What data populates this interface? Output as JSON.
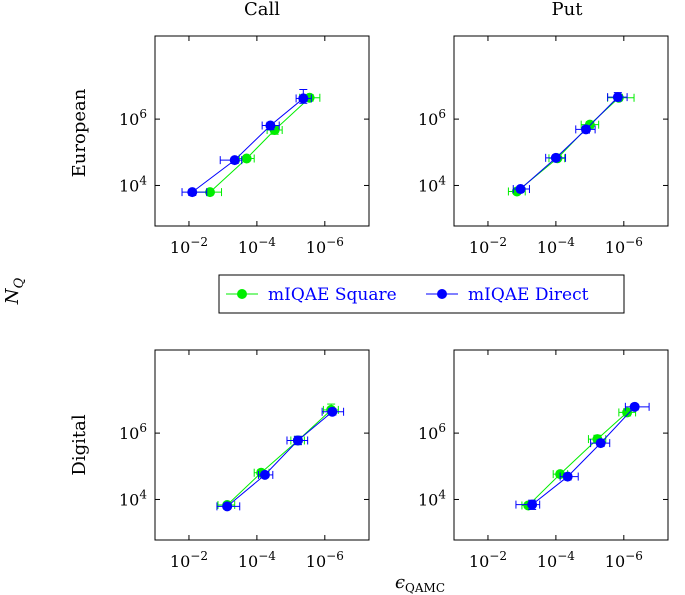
{
  "figure": {
    "col_titles": [
      "Call",
      "Put"
    ],
    "row_titles": [
      "European",
      "Digital"
    ],
    "xlabel": "ϵQAMC",
    "xlabel_main": "ϵ",
    "xlabel_sub": "QAMC",
    "ylabel": "NQ",
    "ylabel_main": "N",
    "ylabel_sub": "Q",
    "legend": {
      "placement": "center",
      "entries": [
        {
          "label": "mIQAE Square",
          "color": "#00ee00"
        },
        {
          "label": "mIQAE Direct",
          "color": "#0000ff"
        }
      ],
      "text_color": "#0000ff"
    }
  },
  "chart_data": [
    {
      "type": "scatter",
      "panel": "European-Call",
      "xscale": "log",
      "yscale": "log",
      "xreversed": true,
      "xlim": [
        0.1,
        5e-08
      ],
      "ylim": [
        600,
        320000000.0
      ],
      "xticks": [
        "10^-2",
        "10^-4",
        "10^-6"
      ],
      "yticks": [
        "10^4",
        "10^6"
      ],
      "series": [
        {
          "name": "mIQAE Square",
          "color": "#00ee00",
          "points": [
            {
              "x": 0.0024,
              "y": 6300.0,
              "xerr": [
                0.007,
                0.0011
              ]
            },
            {
              "x": 0.0002,
              "y": 65000.0,
              "xerr": [
                0.00033,
                0.00012
              ]
            },
            {
              "x": 3e-05,
              "y": 470000.0,
              "xerr": [
                5e-05,
                1.8e-05
              ],
              "yerr": [
                350000.0,
                600000.0
              ]
            },
            {
              "x": 2.8e-06,
              "y": 4400000.0,
              "xerr": [
                5.5e-06,
                1.4e-06
              ],
              "yerr": [
                3500000.0,
                5500000.0
              ]
            }
          ]
        },
        {
          "name": "mIQAE Direct",
          "color": "#0000ff",
          "points": [
            {
              "x": 0.008,
              "y": 6300.0,
              "xerr": [
                0.016,
                0.003
              ],
              "yerr": [
                5000.0,
                7500.0
              ]
            },
            {
              "x": 0.00045,
              "y": 58000.0,
              "xerr": [
                0.0012,
                0.00028
              ],
              "yerr": [
                46000.0,
                68000.0
              ]
            },
            {
              "x": 4e-05,
              "y": 640000.0,
              "xerr": [
                7e-05,
                2.2e-05
              ],
              "yerr": [
                480000.0,
                800000.0
              ]
            },
            {
              "x": 4.3e-06,
              "y": 4200000.0,
              "xerr": [
                7e-06,
                2.5e-06
              ],
              "yerr": [
                3000000.0,
                7800000.0
              ]
            }
          ]
        }
      ]
    },
    {
      "type": "scatter",
      "panel": "European-Put",
      "xscale": "log",
      "yscale": "log",
      "xreversed": true,
      "xlim": [
        0.1,
        5e-08
      ],
      "ylim": [
        600,
        320000000.0
      ],
      "xticks": [
        "10^-2",
        "10^-4",
        "10^-6"
      ],
      "yticks": [
        "10^4",
        "10^6"
      ],
      "series": [
        {
          "name": "mIQAE Square",
          "color": "#00ee00",
          "points": [
            {
              "x": 0.0014,
              "y": 6600.0,
              "xerr": [
                0.0025,
                0.0008
              ]
            },
            {
              "x": 9e-05,
              "y": 66000.0,
              "xerr": [
                0.00016,
                5.5e-05
              ]
            },
            {
              "x": 1e-05,
              "y": 680000.0,
              "xerr": [
                1.8e-05,
                5.5e-06
              ],
              "yerr": [
                530000.0,
                830000.0
              ]
            },
            {
              "x": 1.4e-06,
              "y": 4400000.0,
              "xerr": [
                3e-06,
                5e-07
              ],
              "yerr": [
                3600000.0,
                5600000.0
              ]
            }
          ]
        },
        {
          "name": "mIQAE Direct",
          "color": "#0000ff",
          "points": [
            {
              "x": 0.0011,
              "y": 7800.0,
              "xerr": [
                0.0018,
                0.0006
              ],
              "yerr": [
                6800.0,
                9000.0
              ]
            },
            {
              "x": 0.0001,
              "y": 68000.0,
              "xerr": [
                0.0002,
                5.2e-05
              ],
              "yerr": [
                55000.0,
                81000.0
              ]
            },
            {
              "x": 1.3e-05,
              "y": 490000.0,
              "xerr": [
                2.6e-05,
                7e-06
              ],
              "yerr": [
                380000.0,
                620000.0
              ]
            },
            {
              "x": 1.5e-06,
              "y": 4600000.0,
              "xerr": [
                3e-06,
                8e-07
              ],
              "yerr": [
                3500000.0,
                6300000.0
              ]
            }
          ]
        }
      ]
    },
    {
      "type": "scatter",
      "panel": "Digital-Call",
      "xscale": "log",
      "yscale": "log",
      "xreversed": true,
      "xlim": [
        0.1,
        5e-08
      ],
      "ylim": [
        600,
        320000000.0
      ],
      "xticks": [
        "10^-2",
        "10^-4",
        "10^-6"
      ],
      "yticks": [
        "10^4",
        "10^6"
      ],
      "series": [
        {
          "name": "mIQAE Square",
          "color": "#00ee00",
          "points": [
            {
              "x": 0.00075,
              "y": 6800.0,
              "xerr": [
                0.0014,
                0.00045
              ]
            },
            {
              "x": 7.5e-05,
              "y": 64000.0,
              "xerr": [
                0.00012,
                4.4e-05
              ]
            },
            {
              "x": 6.2e-06,
              "y": 600000.0,
              "xerr": [
                1e-05,
                4e-06
              ],
              "yerr": [
                450000.0,
                800000.0
              ]
            },
            {
              "x": 6.5e-07,
              "y": 5000000.0,
              "xerr": [
                1.1e-06,
                4e-07
              ],
              "yerr": [
                3500000.0,
                7500000.0
              ]
            }
          ]
        },
        {
          "name": "mIQAE Direct",
          "color": "#0000ff",
          "points": [
            {
              "x": 0.00075,
              "y": 6200.0,
              "xerr": [
                0.0015,
                0.00032
              ],
              "yerr": [
                5300.0,
                7400.0
              ]
            },
            {
              "x": 5.8e-05,
              "y": 55000.0,
              "xerr": [
                9e-05,
                3.4e-05
              ],
              "yerr": [
                46000.0,
                67000.0
              ]
            },
            {
              "x": 6.2e-06,
              "y": 600000.0,
              "xerr": [
                1.3e-05,
                3.2e-06
              ],
              "yerr": [
                450000.0,
                800000.0
              ]
            },
            {
              "x": 6e-07,
              "y": 4400000.0,
              "xerr": [
                1.2e-06,
                2.8e-07
              ],
              "yerr": [
                3500000.0,
                5500000.0
              ]
            }
          ]
        }
      ]
    },
    {
      "type": "scatter",
      "panel": "Digital-Put",
      "xscale": "log",
      "yscale": "log",
      "xreversed": true,
      "xlim": [
        0.1,
        5e-08
      ],
      "ylim": [
        600,
        320000000.0
      ],
      "xticks": [
        "10^-2",
        "10^-4",
        "10^-6"
      ],
      "yticks": [
        "10^4",
        "10^6"
      ],
      "series": [
        {
          "name": "mIQAE Square",
          "color": "#00ee00",
          "points": [
            {
              "x": 0.00065,
              "y": 6600.0,
              "xerr": [
                0.001,
                0.00043
              ]
            },
            {
              "x": 7.5e-05,
              "y": 58000.0,
              "xerr": [
                0.00012,
                4.5e-05
              ]
            },
            {
              "x": 6e-06,
              "y": 660000.0,
              "xerr": [
                1.1e-05,
                3.4e-06
              ],
              "yerr": [
                500000.0,
                860000.0
              ]
            },
            {
              "x": 8e-07,
              "y": 4200000.0,
              "xerr": [
                1.4e-06,
                4.5e-07
              ],
              "yerr": [
                3300000.0,
                5400000.0
              ]
            }
          ]
        },
        {
          "name": "mIQAE Direct",
          "color": "#0000ff",
          "points": [
            {
              "x": 0.0005,
              "y": 7000.0,
              "xerr": [
                0.0015,
                0.0003
              ],
              "yerr": [
                5000.0,
                9500.0
              ]
            },
            {
              "x": 4.5e-05,
              "y": 49000.0,
              "xerr": [
                7.5e-05,
                2.2e-05
              ],
              "yerr": [
                39000.0,
                61000.0
              ]
            },
            {
              "x": 4.8e-06,
              "y": 500000.0,
              "xerr": [
                9.5e-06,
                2.6e-06
              ],
              "yerr": [
                400000.0,
                620000.0
              ]
            },
            {
              "x": 4.8e-07,
              "y": 6200000.0,
              "xerr": [
                9e-07,
                1.8e-07
              ],
              "yerr": [
                5000000.0,
                7400000.0
              ]
            }
          ]
        }
      ]
    }
  ]
}
